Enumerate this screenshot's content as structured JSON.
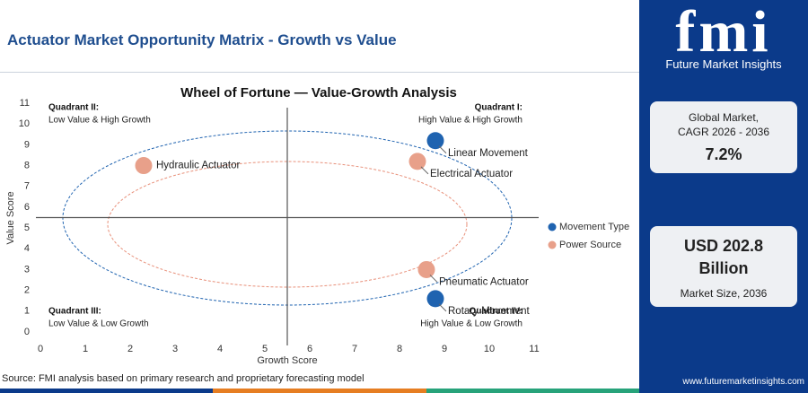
{
  "title": "Actuator Market Opportunity Matrix - Growth vs Value",
  "source": "Source: FMI analysis based on primary research and proprietary forecasting model",
  "panel": {
    "logo": "fmi",
    "brand": "Future Market Insights",
    "cagr_label": [
      "Global Market,",
      "CAGR 2026 - 2036"
    ],
    "cagr_value": "7.2%",
    "size_value": [
      "USD 202.8",
      "Billion"
    ],
    "size_label": "Market Size, 2036",
    "website": "www.futuremarketinsights.com"
  },
  "chart_data": {
    "type": "scatter",
    "title": "Wheel of Fortune — Value-Growth Analysis",
    "x_label": "Growth Score",
    "y_label": "Value Score",
    "xlim": [
      0,
      11
    ],
    "ylim": [
      0,
      11
    ],
    "xticks": [
      0,
      1,
      2,
      3,
      4,
      5,
      6,
      7,
      8,
      9,
      10,
      11
    ],
    "yticks": [
      0,
      1,
      2,
      3,
      4,
      5,
      6,
      7,
      8,
      9,
      10,
      11
    ],
    "quadrants": [
      {
        "title": "Quadrant II:",
        "text": "Low Value & High Growth"
      },
      {
        "title": "Quadrant I:",
        "text": "High Value & High Growth"
      },
      {
        "title": "Quadrant III:",
        "text": "Low Value & Low Growth"
      },
      {
        "title": "Quadrant IV:",
        "text": "High Value & Low Growth"
      }
    ],
    "series": [
      {
        "name": "Movement Type",
        "color": "#1f63b0",
        "x": [
          8.8,
          8.8
        ],
        "values": [
          9.2,
          1.6
        ],
        "point_labels": [
          "Linear Movement",
          "Rotary Movement"
        ]
      },
      {
        "name": "Power Source",
        "color": "#e8a08a",
        "x": [
          8.4,
          2.3,
          8.6
        ],
        "values": [
          8.2,
          8.0,
          3.0
        ],
        "point_labels": [
          "Electrical Actuator",
          "Hydraulic Actuator",
          "Pneumatic Actuator"
        ]
      }
    ]
  }
}
